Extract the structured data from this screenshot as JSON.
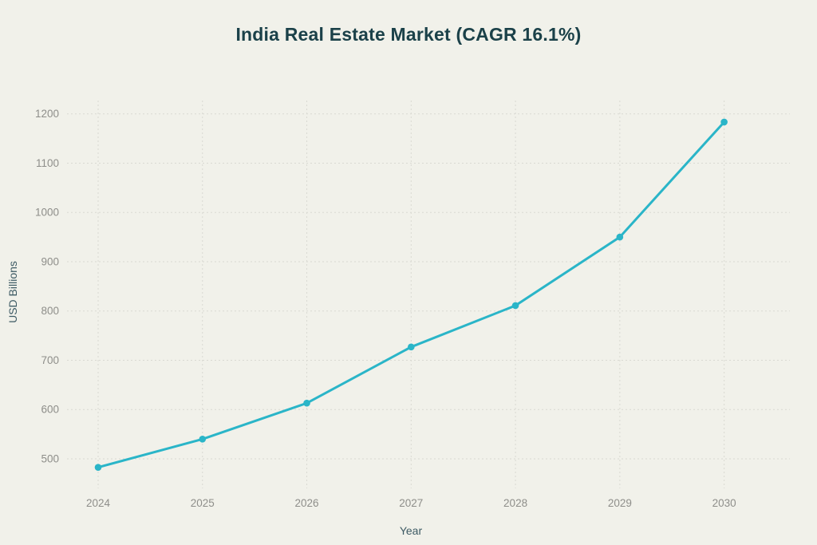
{
  "page": {
    "background_color": "#f1f1ea"
  },
  "chart_data": {
    "type": "line",
    "title": "India Real Estate Market (CAGR 16.1%)",
    "xlabel": "Year",
    "ylabel": "USD Billions",
    "categories": [
      "2024",
      "2025",
      "2026",
      "2027",
      "2028",
      "2029",
      "2030"
    ],
    "values": [
      482.7,
      540,
      613,
      727,
      811,
      950,
      1183.4
    ],
    "y_ticks": [
      500,
      600,
      700,
      800,
      900,
      1000,
      1100,
      1200
    ],
    "ylim": [
      440,
      1227
    ],
    "grid": true,
    "legend": "none",
    "marker": "circle",
    "colors": {
      "line": "#2ab5c8",
      "marker": "#2ab5c8",
      "title": "#1b4149",
      "axis_title": "#3d5a64",
      "tick_label": "#8e8e8a",
      "gridline": "#d9d9d2",
      "background": "#f1f1ea"
    }
  }
}
